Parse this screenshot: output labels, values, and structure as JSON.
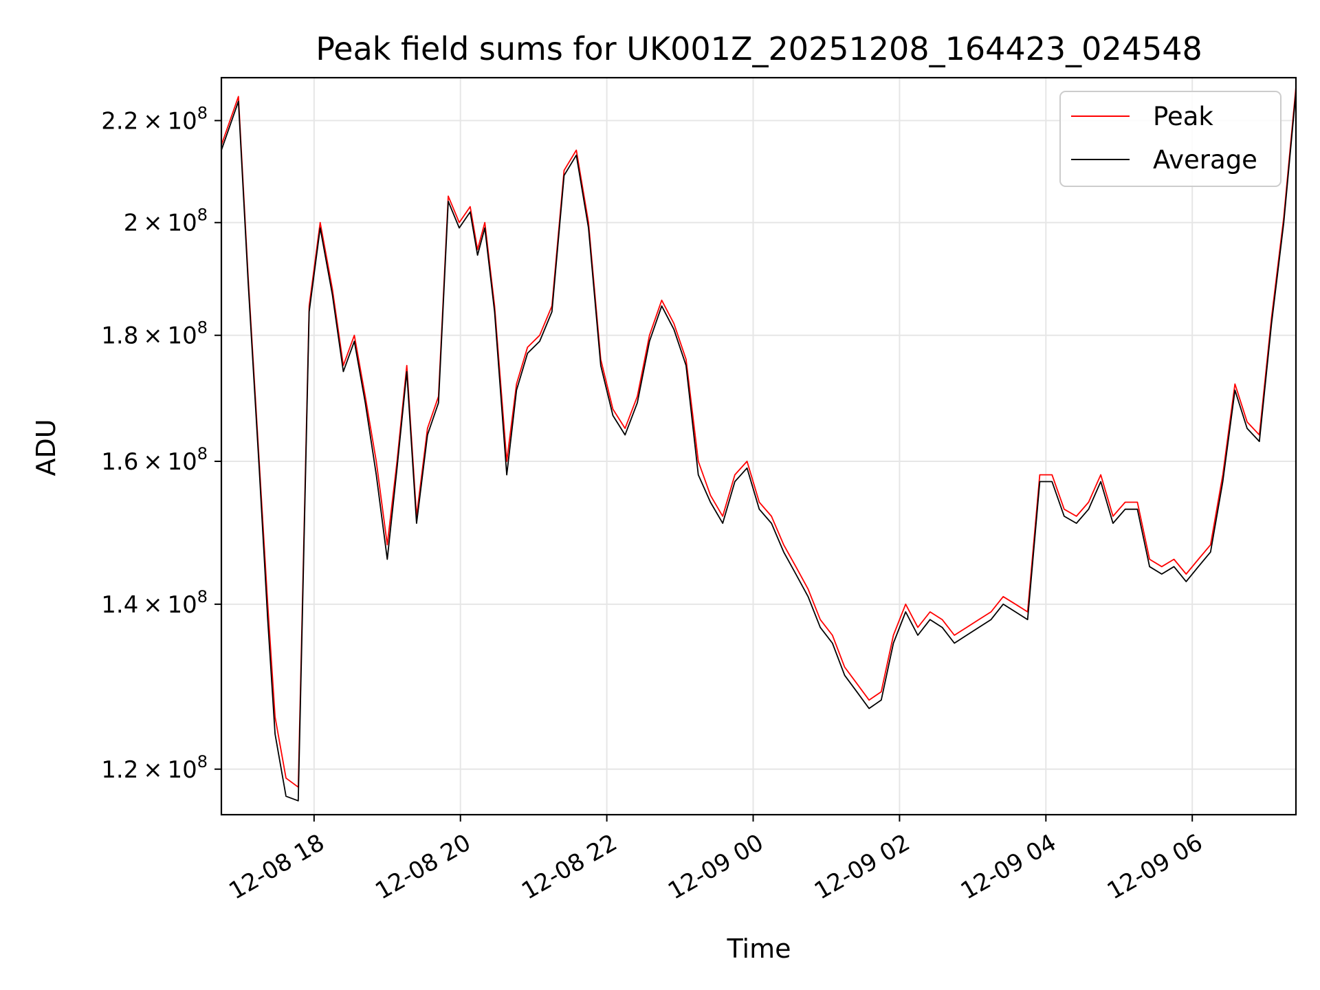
{
  "chart_data": {
    "type": "line",
    "title": "Peak field sums for UK001Z_20251208_164423_024548",
    "xlabel": "Time",
    "ylabel": "ADU",
    "x_range": [
      "2025-12-08 16:44",
      "2025-12-09 07:25"
    ],
    "ylim": [
      115000000,
      229000000
    ],
    "y_scale": "log",
    "grid": true,
    "legend_position": "top-right",
    "x_ticks": [
      {
        "t": "2025-12-08 18:00",
        "label": "12-08 18"
      },
      {
        "t": "2025-12-08 20:00",
        "label": "12-08 20"
      },
      {
        "t": "2025-12-08 22:00",
        "label": "12-08 22"
      },
      {
        "t": "2025-12-09 00:00",
        "label": "12-09 00"
      },
      {
        "t": "2025-12-09 02:00",
        "label": "12-09 02"
      },
      {
        "t": "2025-12-09 04:00",
        "label": "12-09 04"
      },
      {
        "t": "2025-12-09 06:00",
        "label": "12-09 06"
      }
    ],
    "y_ticks": [
      {
        "value": 120000000,
        "mantissa": "1.2",
        "base": "10",
        "exp": "8"
      },
      {
        "value": 140000000,
        "mantissa": "1.4",
        "base": "10",
        "exp": "8"
      },
      {
        "value": 160000000,
        "mantissa": "1.6",
        "base": "10",
        "exp": "8"
      },
      {
        "value": 180000000,
        "mantissa": "1.8",
        "base": "10",
        "exp": "8"
      },
      {
        "value": 200000000,
        "mantissa": "2",
        "base": "10",
        "exp": "8"
      },
      {
        "value": 220000000,
        "mantissa": "2.2",
        "base": "10",
        "exp": "8"
      }
    ],
    "series": [
      {
        "name": "Peak",
        "color": "#ff0000",
        "x": [
          "2025-12-08 16:44",
          "2025-12-08 16:58",
          "2025-12-08 17:06",
          "2025-12-08 17:15",
          "2025-12-08 17:22",
          "2025-12-08 17:28",
          "2025-12-08 17:37",
          "2025-12-08 17:47",
          "2025-12-08 17:56",
          "2025-12-08 18:05",
          "2025-12-08 18:15",
          "2025-12-08 18:24",
          "2025-12-08 18:33",
          "2025-12-08 18:42",
          "2025-12-08 18:51",
          "2025-12-08 19:00",
          "2025-12-08 19:08",
          "2025-12-08 19:16",
          "2025-12-08 19:24",
          "2025-12-08 19:33",
          "2025-12-08 19:42",
          "2025-12-08 19:50",
          "2025-12-08 19:59",
          "2025-12-08 20:08",
          "2025-12-08 20:14",
          "2025-12-08 20:20",
          "2025-12-08 20:28",
          "2025-12-08 20:38",
          "2025-12-08 20:46",
          "2025-12-08 20:55",
          "2025-12-08 21:05",
          "2025-12-08 21:15",
          "2025-12-08 21:25",
          "2025-12-08 21:35",
          "2025-12-08 21:45",
          "2025-12-08 21:55",
          "2025-12-08 22:05",
          "2025-12-08 22:15",
          "2025-12-08 22:25",
          "2025-12-08 22:35",
          "2025-12-08 22:45",
          "2025-12-08 22:55",
          "2025-12-08 23:05",
          "2025-12-08 23:15",
          "2025-12-08 23:25",
          "2025-12-08 23:35",
          "2025-12-08 23:45",
          "2025-12-08 23:55",
          "2025-12-09 00:05",
          "2025-12-09 00:15",
          "2025-12-09 00:25",
          "2025-12-09 00:35",
          "2025-12-09 00:45",
          "2025-12-09 00:55",
          "2025-12-09 01:05",
          "2025-12-09 01:15",
          "2025-12-09 01:25",
          "2025-12-09 01:35",
          "2025-12-09 01:45",
          "2025-12-09 01:55",
          "2025-12-09 02:05",
          "2025-12-09 02:15",
          "2025-12-09 02:25",
          "2025-12-09 02:35",
          "2025-12-09 02:45",
          "2025-12-09 02:55",
          "2025-12-09 03:05",
          "2025-12-09 03:15",
          "2025-12-09 03:25",
          "2025-12-09 03:35",
          "2025-12-09 03:45",
          "2025-12-09 03:55",
          "2025-12-09 04:05",
          "2025-12-09 04:15",
          "2025-12-09 04:25",
          "2025-12-09 04:35",
          "2025-12-09 04:45",
          "2025-12-09 04:55",
          "2025-12-09 05:05",
          "2025-12-09 05:15",
          "2025-12-09 05:25",
          "2025-12-09 05:35",
          "2025-12-09 05:45",
          "2025-12-09 05:55",
          "2025-12-09 06:05",
          "2025-12-09 06:15",
          "2025-12-09 06:25",
          "2025-12-09 06:35",
          "2025-12-09 06:45",
          "2025-12-09 06:55",
          "2025-12-09 07:05",
          "2025-12-09 07:15",
          "2025-12-09 07:25"
        ],
        "values": [
          215000000,
          225000000,
          190000000,
          160000000,
          140000000,
          126000000,
          119000000,
          118000000,
          185000000,
          200000000,
          188000000,
          175000000,
          180000000,
          170000000,
          160000000,
          148000000,
          160000000,
          175000000,
          152000000,
          165000000,
          170000000,
          205000000,
          200000000,
          203000000,
          195000000,
          200000000,
          185000000,
          160000000,
          172000000,
          178000000,
          180000000,
          185000000,
          210000000,
          214000000,
          200000000,
          176000000,
          168000000,
          165000000,
          170000000,
          180000000,
          186000000,
          182000000,
          176000000,
          160000000,
          155000000,
          152000000,
          158000000,
          160000000,
          154000000,
          152000000,
          148000000,
          145000000,
          142000000,
          138000000,
          136000000,
          132000000,
          130000000,
          128000000,
          129000000,
          136000000,
          140000000,
          137000000,
          139000000,
          138000000,
          136000000,
          137000000,
          138000000,
          139000000,
          141000000,
          140000000,
          139000000,
          158000000,
          158000000,
          153000000,
          152000000,
          154000000,
          158000000,
          152000000,
          154000000,
          154000000,
          146000000,
          145000000,
          146000000,
          144000000,
          146000000,
          148000000,
          158000000,
          172000000,
          166000000,
          164000000,
          183000000,
          201000000,
          227000000
        ]
      },
      {
        "name": "Average",
        "color": "#000000",
        "x": [
          "2025-12-08 16:44",
          "2025-12-08 16:58",
          "2025-12-08 17:06",
          "2025-12-08 17:15",
          "2025-12-08 17:22",
          "2025-12-08 17:28",
          "2025-12-08 17:37",
          "2025-12-08 17:47",
          "2025-12-08 17:56",
          "2025-12-08 18:05",
          "2025-12-08 18:15",
          "2025-12-08 18:24",
          "2025-12-08 18:33",
          "2025-12-08 18:42",
          "2025-12-08 18:51",
          "2025-12-08 19:00",
          "2025-12-08 19:08",
          "2025-12-08 19:16",
          "2025-12-08 19:24",
          "2025-12-08 19:33",
          "2025-12-08 19:42",
          "2025-12-08 19:50",
          "2025-12-08 19:59",
          "2025-12-08 20:08",
          "2025-12-08 20:14",
          "2025-12-08 20:20",
          "2025-12-08 20:28",
          "2025-12-08 20:38",
          "2025-12-08 20:46",
          "2025-12-08 20:55",
          "2025-12-08 21:05",
          "2025-12-08 21:15",
          "2025-12-08 21:25",
          "2025-12-08 21:35",
          "2025-12-08 21:45",
          "2025-12-08 21:55",
          "2025-12-08 22:05",
          "2025-12-08 22:15",
          "2025-12-08 22:25",
          "2025-12-08 22:35",
          "2025-12-08 22:45",
          "2025-12-08 22:55",
          "2025-12-08 23:05",
          "2025-12-08 23:15",
          "2025-12-08 23:25",
          "2025-12-08 23:35",
          "2025-12-08 23:45",
          "2025-12-08 23:55",
          "2025-12-09 00:05",
          "2025-12-09 00:15",
          "2025-12-09 00:25",
          "2025-12-09 00:35",
          "2025-12-09 00:45",
          "2025-12-09 00:55",
          "2025-12-09 01:05",
          "2025-12-09 01:15",
          "2025-12-09 01:25",
          "2025-12-09 01:35",
          "2025-12-09 01:45",
          "2025-12-09 01:55",
          "2025-12-09 02:05",
          "2025-12-09 02:15",
          "2025-12-09 02:25",
          "2025-12-09 02:35",
          "2025-12-09 02:45",
          "2025-12-09 02:55",
          "2025-12-09 03:05",
          "2025-12-09 03:15",
          "2025-12-09 03:25",
          "2025-12-09 03:35",
          "2025-12-09 03:45",
          "2025-12-09 03:55",
          "2025-12-09 04:05",
          "2025-12-09 04:15",
          "2025-12-09 04:25",
          "2025-12-09 04:35",
          "2025-12-09 04:45",
          "2025-12-09 04:55",
          "2025-12-09 05:05",
          "2025-12-09 05:15",
          "2025-12-09 05:25",
          "2025-12-09 05:35",
          "2025-12-09 05:45",
          "2025-12-09 05:55",
          "2025-12-09 06:05",
          "2025-12-09 06:15",
          "2025-12-09 06:25",
          "2025-12-09 06:35",
          "2025-12-09 06:45",
          "2025-12-09 06:55",
          "2025-12-09 07:05",
          "2025-12-09 07:15",
          "2025-12-09 07:25"
        ],
        "values": [
          214000000,
          224000000,
          189000000,
          159000000,
          138000000,
          124000000,
          117000000,
          116500000,
          184000000,
          199000000,
          187000000,
          174000000,
          179000000,
          169000000,
          158000000,
          146000000,
          159000000,
          174000000,
          151000000,
          164000000,
          169000000,
          204000000,
          199000000,
          202000000,
          194000000,
          199000000,
          184000000,
          158000000,
          171000000,
          177000000,
          179000000,
          184000000,
          209000000,
          213000000,
          199000000,
          175000000,
          167000000,
          164000000,
          169000000,
          179000000,
          185000000,
          181000000,
          175000000,
          158000000,
          154000000,
          151000000,
          157000000,
          159000000,
          153000000,
          151000000,
          147000000,
          144000000,
          141000000,
          137000000,
          135000000,
          131000000,
          129000000,
          127000000,
          128000000,
          135000000,
          139000000,
          136000000,
          138000000,
          137000000,
          135000000,
          136000000,
          137000000,
          138000000,
          140000000,
          139000000,
          138000000,
          157000000,
          157000000,
          152000000,
          151000000,
          153000000,
          157000000,
          151000000,
          153000000,
          153000000,
          145000000,
          144000000,
          145000000,
          143000000,
          145000000,
          147000000,
          157000000,
          171000000,
          165000000,
          163000000,
          182000000,
          200000000,
          226000000
        ]
      }
    ]
  }
}
